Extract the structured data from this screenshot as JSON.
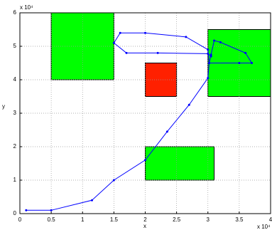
{
  "chart_data": {
    "type": "line",
    "xlabel": "x",
    "ylabel": "y",
    "x_multiplier": "x 10⁴",
    "y_multiplier": "x 10⁴",
    "xlim": [
      0,
      4
    ],
    "ylim": [
      0,
      6
    ],
    "xticks": [
      0,
      0.5,
      1,
      1.5,
      2,
      2.5,
      3,
      3.5,
      4
    ],
    "yticks": [
      0,
      1,
      2,
      3,
      4,
      5,
      6
    ],
    "grid": true,
    "rectangles": [
      {
        "x": [
          0.5,
          1.5
        ],
        "y": [
          4,
          6
        ],
        "color": "#00ff00"
      },
      {
        "x": [
          3,
          4
        ],
        "y": [
          3.5,
          5.5
        ],
        "color": "#00ff00"
      },
      {
        "x": [
          2,
          3.1
        ],
        "y": [
          1,
          2
        ],
        "color": "#00ff00"
      },
      {
        "x": [
          2,
          2.5
        ],
        "y": [
          3.5,
          4.5
        ],
        "color": "#ff2000"
      }
    ],
    "series": [
      {
        "color": "#0000ff",
        "x": [
          0.1,
          0.5,
          1.15,
          1.5,
          2.0,
          2.35,
          2.7,
          3.0,
          3.02,
          3.05,
          3.1,
          3.2,
          3.6,
          3.7,
          3.5,
          3.02,
          3.0,
          2.65,
          2.0,
          1.6,
          1.5,
          1.7,
          2.2,
          3.0,
          3.05
        ],
        "y": [
          0.1,
          0.1,
          0.4,
          1.0,
          1.6,
          2.45,
          3.25,
          4.05,
          4.5,
          4.75,
          5.17,
          5.12,
          4.8,
          4.5,
          4.5,
          4.5,
          4.9,
          5.28,
          5.4,
          5.4,
          5.1,
          4.8,
          4.8,
          4.78,
          4.7
        ]
      }
    ]
  }
}
